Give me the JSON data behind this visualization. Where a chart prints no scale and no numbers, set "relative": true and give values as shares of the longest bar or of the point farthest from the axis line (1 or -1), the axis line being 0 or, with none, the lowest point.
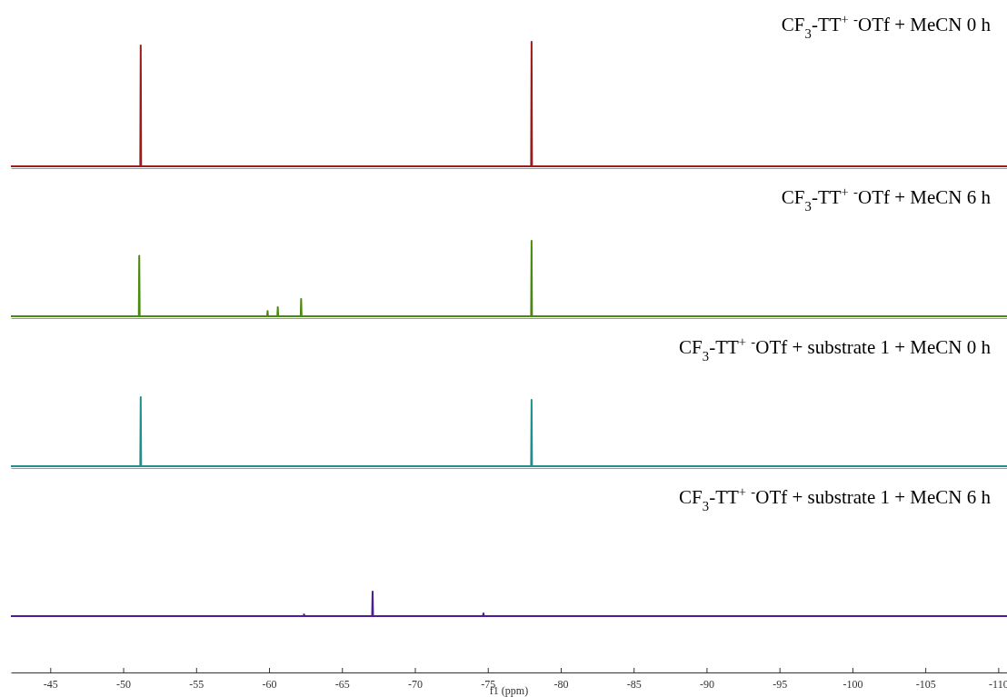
{
  "chart_data": [
    {
      "type": "line",
      "title": "CF$_{3}$-TT$^{+}$ $^{-}$OTf + MeCN 0 h",
      "relative": true,
      "xlim": [
        -42.3,
        -110.6
      ],
      "xticks": [
        -45,
        -50,
        -55,
        -60,
        -65,
        -70,
        -75,
        -80,
        -85,
        -90,
        -95,
        -100,
        -105,
        -110
      ],
      "tick_labels": false,
      "marker": "none",
      "line_style": "solid",
      "series": [
        {
          "color": "#9b1c1c",
          "x": [
            -42.3,
            -51.17,
            -51.2,
            -51.23,
            -77.97,
            -78.0,
            -78.03,
            -110.6
          ],
          "values": [
            0,
            0,
            0.97,
            0,
            0,
            1,
            0,
            0
          ]
        }
      ]
    },
    {
      "type": "line",
      "title": "CF$_{3}$-TT$^{+}$ $^{-}$OTf + MeCN 6 h",
      "relative": true,
      "xlim": [
        -42.3,
        -110.6
      ],
      "xticks": [
        -45,
        -50,
        -55,
        -60,
        -65,
        -70,
        -75,
        -80,
        -85,
        -90,
        -95,
        -100,
        -105,
        -110
      ],
      "tick_labels": false,
      "marker": "none",
      "line_style": "solid",
      "series": [
        {
          "color": "#4a8a10",
          "x": [
            -42.3,
            -51.07,
            -51.1,
            -51.13,
            -59.87,
            -59.9,
            -59.93,
            -60.57,
            -60.6,
            -60.63,
            -62.17,
            -62.2,
            -62.23,
            -77.97,
            -78.0,
            -78.03,
            -110.6
          ],
          "values": [
            0,
            0,
            0.8,
            0,
            0,
            0.07,
            0,
            0,
            0.12,
            0,
            0,
            0.23,
            0,
            0,
            1,
            0,
            0
          ]
        }
      ]
    },
    {
      "type": "line",
      "title": "CF$_{3}$-TT$^{+}$ $^{-}$OTf + substrate 1 + MeCN 0 h",
      "relative": true,
      "xlim": [
        -42.3,
        -110.6
      ],
      "xticks": [
        -45,
        -50,
        -55,
        -60,
        -65,
        -70,
        -75,
        -80,
        -85,
        -90,
        -95,
        -100,
        -105,
        -110
      ],
      "tick_labels": false,
      "marker": "none",
      "line_style": "solid",
      "series": [
        {
          "color": "#1f8f8f",
          "x": [
            -42.3,
            -51.17,
            -51.2,
            -51.23,
            -77.97,
            -78.0,
            -78.03,
            -110.6
          ],
          "values": [
            0,
            0,
            1,
            0,
            0,
            0.96,
            0,
            0
          ]
        }
      ]
    },
    {
      "type": "line",
      "title": "CF$_{3}$-TT$^{+}$ $^{-}$OTf + substrate 1 + MeCN 6 h",
      "relative": true,
      "xlim": [
        -42.3,
        -110.6
      ],
      "tick_labels": "x",
      "xlabel": "f1 (ppm)",
      "marker": "none",
      "line_style": "solid",
      "xticks": [
        -45,
        -50,
        -55,
        -60,
        -65,
        -70,
        -75,
        -80,
        -85,
        -90,
        -95,
        -100,
        -105,
        -110
      ],
      "series": [
        {
          "color": "#4b1c9c",
          "x": [
            -42.3,
            -62.37,
            -62.4,
            -62.43,
            -67.07,
            -67.1,
            -67.13,
            -74.67,
            -74.7,
            -74.73,
            -110.6
          ],
          "values": [
            0,
            0,
            0.07,
            0,
            0,
            1,
            0,
            0,
            0.11,
            0,
            0
          ]
        }
      ]
    }
  ]
}
